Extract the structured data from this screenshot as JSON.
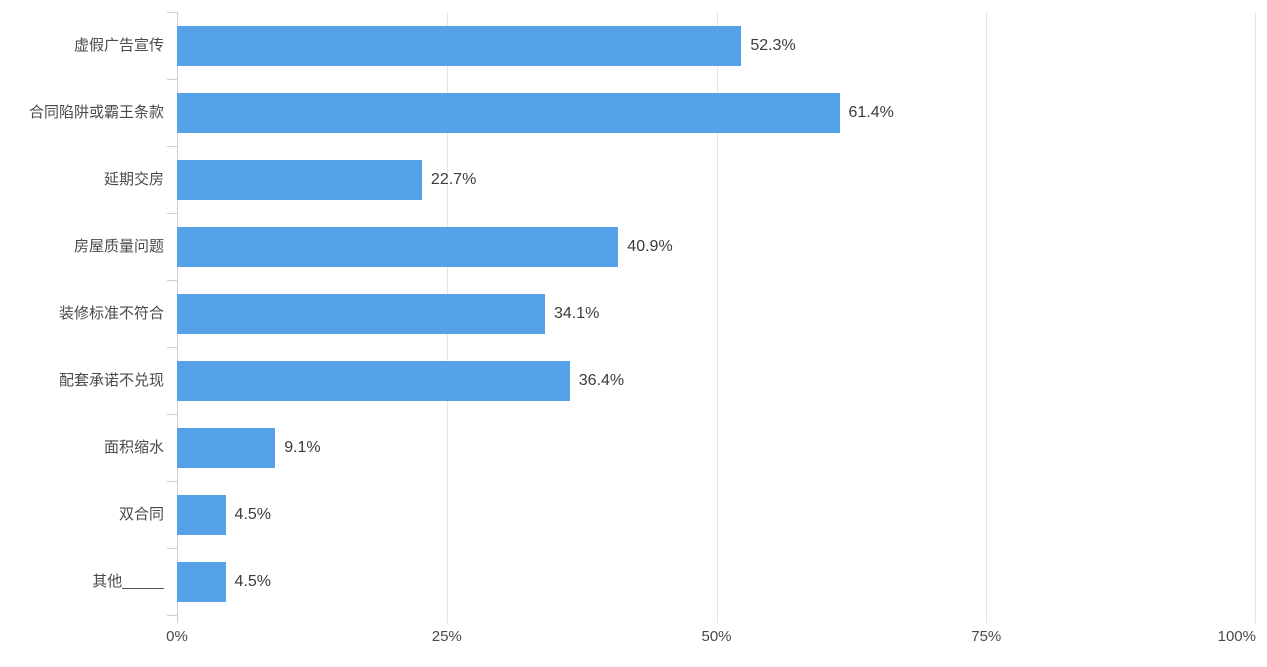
{
  "chart_data": {
    "type": "bar",
    "orientation": "horizontal",
    "title": "",
    "xlabel": "",
    "ylabel": "",
    "categories": [
      "虚假广告宣传",
      "合同陷阱或霸王条款",
      "延期交房",
      "房屋质量问题",
      "装修标准不符合",
      "配套承诺不兑现",
      "面积缩水",
      "双合同",
      "其他_____"
    ],
    "values": [
      52.3,
      61.4,
      22.7,
      40.9,
      34.1,
      36.4,
      9.1,
      4.5,
      4.5
    ],
    "value_labels": [
      "52.3%",
      "61.4%",
      "22.7%",
      "40.9%",
      "34.1%",
      "36.4%",
      "9.1%",
      "4.5%",
      "4.5%"
    ],
    "x_ticks": [
      "0%",
      "25%",
      "50%",
      "75%",
      "100%"
    ],
    "xlim": [
      0,
      100
    ],
    "grid": true,
    "legend": false,
    "bar_color": "#55A2E8",
    "grid_color": "#E4E4E4",
    "axis_color": "#CFCFCF",
    "label_color": "#4A4A4A",
    "value_color": "#3B3B3B"
  }
}
